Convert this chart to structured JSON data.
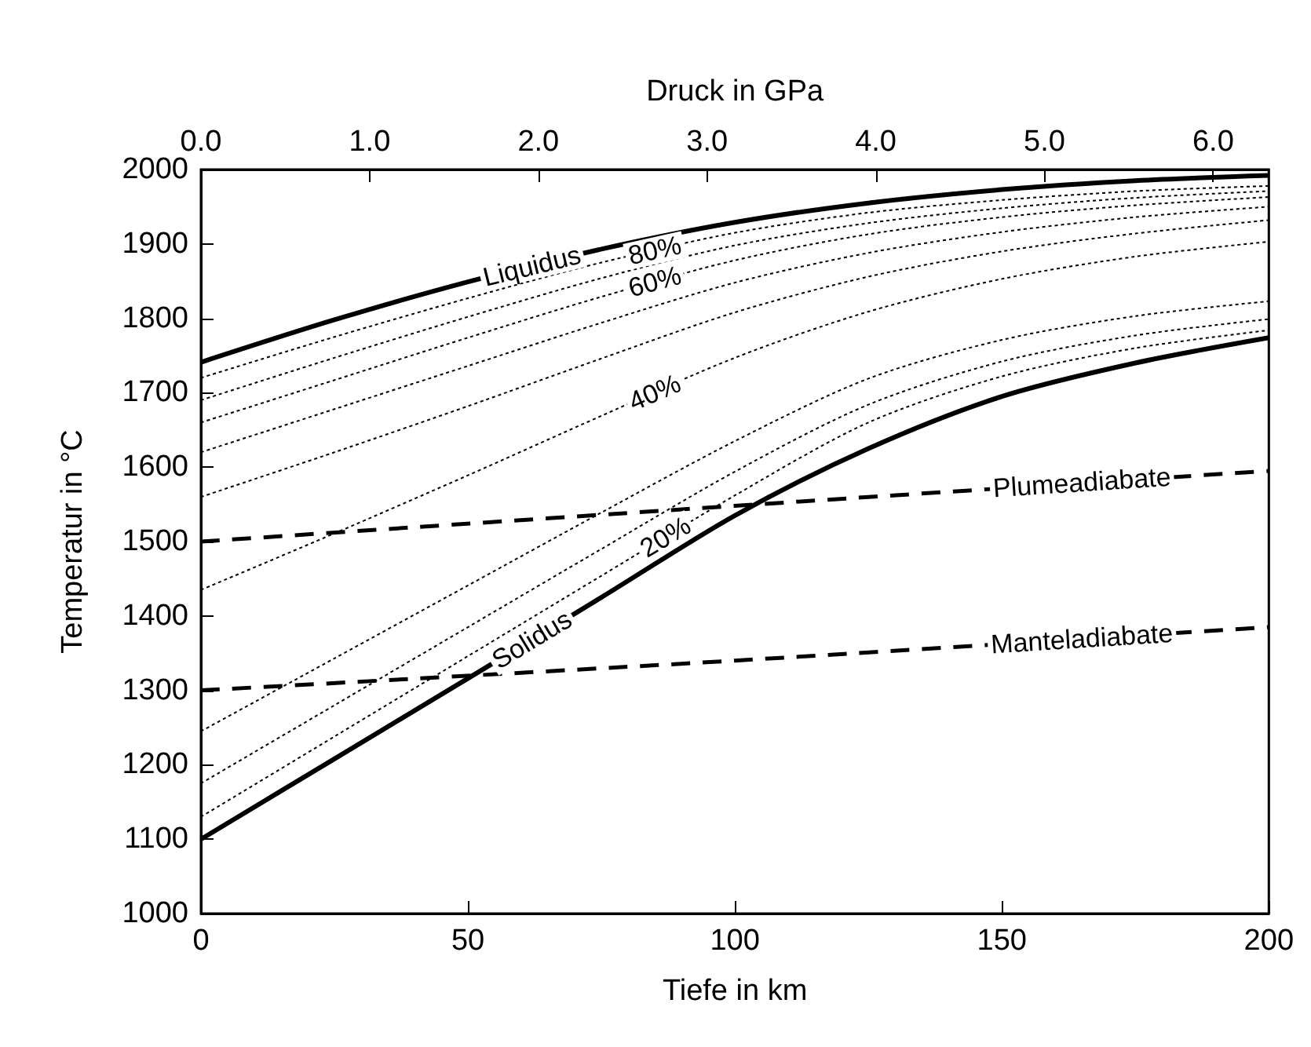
{
  "chart_data": {
    "type": "line",
    "xlabel": "Tiefe in km",
    "ylabel": "Temperatur in °C",
    "x2label": "Druck in GPa",
    "xlim": [
      0,
      200
    ],
    "xticks": [
      0,
      50,
      100,
      150,
      200
    ],
    "ylim": [
      1000,
      2000
    ],
    "yticks": [
      1000,
      1100,
      1200,
      1300,
      1400,
      1500,
      1600,
      1700,
      1800,
      1900,
      2000
    ],
    "x2lim": [
      0,
      6.33
    ],
    "x2ticks": [
      {
        "value": 0,
        "label": "0.0"
      },
      {
        "value": 1,
        "label": "1.0"
      },
      {
        "value": 2,
        "label": "2.0"
      },
      {
        "value": 3,
        "label": "3.0"
      },
      {
        "value": 4,
        "label": "4.0"
      },
      {
        "value": 5,
        "label": "5.0"
      },
      {
        "value": 6,
        "label": "6.0"
      }
    ],
    "x": [
      0,
      25,
      50,
      75,
      100,
      125,
      150,
      175,
      200
    ],
    "grid": false,
    "marker": "none",
    "series": [
      {
        "color": "#000000",
        "line_style": "solid",
        "values": [
          1741,
          1798,
          1849,
          1893,
          1929,
          1955,
          1973,
          1985,
          1992
        ]
      },
      {
        "color": "#000000",
        "line_style": "dotted",
        "values": [
          1720,
          1775,
          1827,
          1875,
          1915,
          1942,
          1959,
          1971,
          1978
        ]
      },
      {
        "color": "#000000",
        "line_style": "dotted",
        "values": [
          1690,
          1747,
          1802,
          1854,
          1898,
          1928,
          1948,
          1962,
          1971
        ]
      },
      {
        "color": "#000000",
        "line_style": "dotted",
        "values": [
          1660,
          1717,
          1774,
          1829,
          1878,
          1913,
          1936,
          1952,
          1963
        ]
      },
      {
        "color": "#000000",
        "line_style": "dotted",
        "values": [
          1620,
          1678,
          1736,
          1794,
          1848,
          1888,
          1916,
          1936,
          1950
        ]
      },
      {
        "color": "#000000",
        "line_style": "dotted",
        "values": [
          1560,
          1620,
          1682,
          1746,
          1808,
          1856,
          1890,
          1914,
          1932
        ]
      },
      {
        "color": "#000000",
        "line_style": "dotted",
        "values": [
          1435,
          1511,
          1589,
          1669,
          1747,
          1809,
          1853,
          1883,
          1903
        ]
      },
      {
        "color": "#000000",
        "line_style": "dotted",
        "values": [
          1245,
          1343,
          1441,
          1539,
          1635,
          1719,
          1771,
          1803,
          1823
        ]
      },
      {
        "color": "#000000",
        "line_style": "dotted",
        "values": [
          1175,
          1280,
          1385,
          1490,
          1594,
          1684,
          1742,
          1777,
          1799
        ]
      },
      {
        "color": "#000000",
        "line_style": "dotted",
        "values": [
          1130,
          1238,
          1346,
          1454,
          1562,
          1660,
          1722,
          1760,
          1784
        ]
      },
      {
        "color": "#000000",
        "line_style": "solid",
        "values": [
          1100,
          1208,
          1316,
          1425,
          1535,
          1625,
          1695,
          1740,
          1774
        ]
      },
      {
        "color": "#000000",
        "line_style": "dashed",
        "x": [
          0,
          100,
          200
        ],
        "values": [
          1500,
          1548,
          1595
        ]
      },
      {
        "color": "#000000",
        "line_style": "dashed",
        "x": [
          0,
          100,
          200
        ],
        "values": [
          1300,
          1340,
          1385
        ]
      }
    ],
    "annotations": [
      {
        "text": "Liquidus",
        "x": 62,
        "y": 1870
      },
      {
        "text": "80%",
        "x": 85,
        "y": 1891
      },
      {
        "text": "60%",
        "x": 85,
        "y": 1849
      },
      {
        "text": "40%",
        "x": 85,
        "y": 1700
      },
      {
        "text": "20%",
        "x": 87,
        "y": 1506
      },
      {
        "text": "Solidus",
        "x": 62,
        "y": 1368
      },
      {
        "text": "Plumeadiabate",
        "x": 165,
        "y": 1579
      },
      {
        "text": "Manteladiabate",
        "x": 165,
        "y": 1369
      }
    ]
  }
}
